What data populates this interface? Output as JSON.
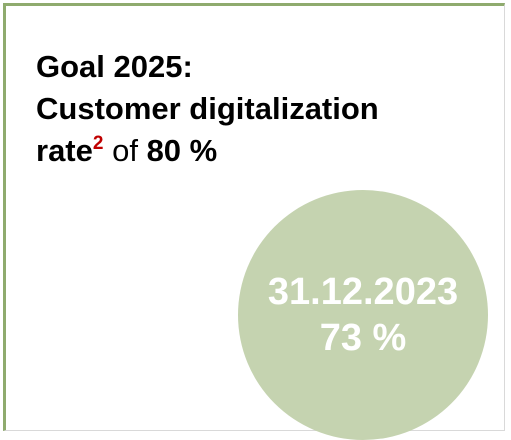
{
  "goal": {
    "line1": "Goal 2025:",
    "line2": "Customer digitalization",
    "line3": {
      "word": "rate",
      "footnote": "2",
      "connector": "of",
      "target": "80 %"
    }
  },
  "badge": {
    "date": "31.12.2023",
    "value": "73 %"
  }
}
